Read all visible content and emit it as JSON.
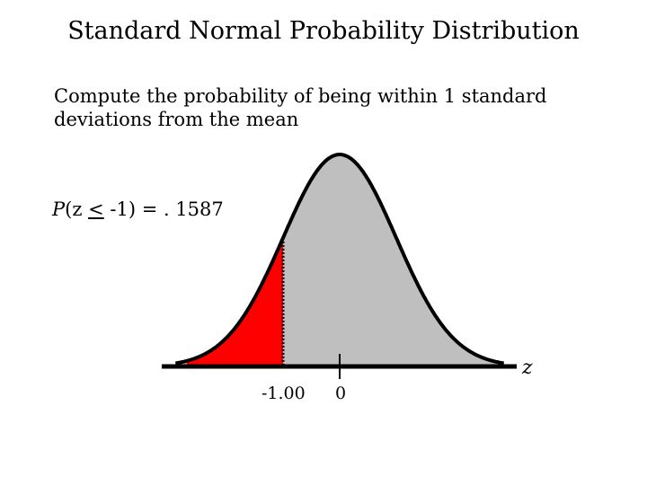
{
  "title": "Standard Normal Probability Distribution",
  "question": "Compute the probability of being within 1 standard deviations from the mean",
  "probability": {
    "p_label": "P",
    "open": "(z ",
    "le_symbol": "<",
    "rest": " -1) = . 1587"
  },
  "figure": {
    "curve": "standard normal",
    "shaded_region": {
      "from": -2.7,
      "to": -1.0,
      "color": "#ff0000"
    },
    "curve_fill": "#bfbfbf",
    "axis_label": "z",
    "ticks": [
      {
        "value": -1.0,
        "label": "-1.00"
      },
      {
        "value": 0,
        "label": "0"
      }
    ]
  }
}
